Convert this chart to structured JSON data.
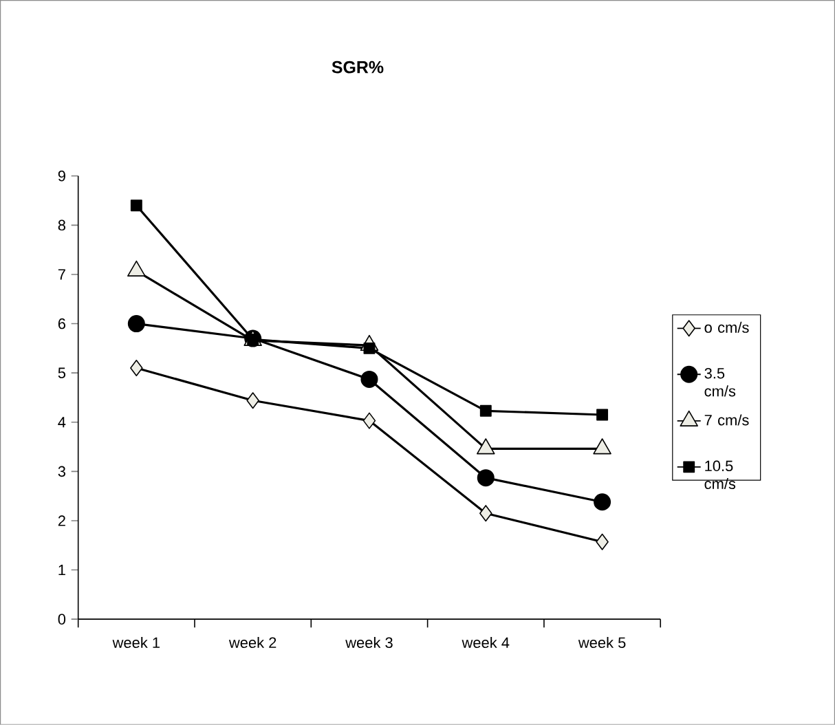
{
  "chart_data": {
    "type": "line",
    "title": "SGR%",
    "categories": [
      "week 1",
      "week 2",
      "week 3",
      "week 4",
      "week 5"
    ],
    "series": [
      {
        "name": "o cm/s",
        "color": "#000000",
        "marker": "diamond",
        "values": [
          5.1,
          4.44,
          4.03,
          2.15,
          1.57
        ]
      },
      {
        "name": "3.5 cm/s",
        "color": "#000000",
        "marker": "circle",
        "values": [
          6.0,
          5.7,
          4.87,
          2.87,
          2.38
        ]
      },
      {
        "name": "7 cm/s",
        "color": "#000000",
        "marker": "triangle",
        "values": [
          7.07,
          5.66,
          5.56,
          3.46,
          3.46
        ]
      },
      {
        "name": "10.5 cm/s",
        "color": "#000000",
        "marker": "square",
        "values": [
          8.4,
          5.68,
          5.5,
          4.23,
          4.15
        ]
      }
    ],
    "ylim": [
      0,
      9
    ],
    "yticks": [
      0,
      1,
      2,
      3,
      4,
      5,
      6,
      7,
      8,
      9
    ],
    "grid": false,
    "legend": "right",
    "line_style": "solid"
  }
}
